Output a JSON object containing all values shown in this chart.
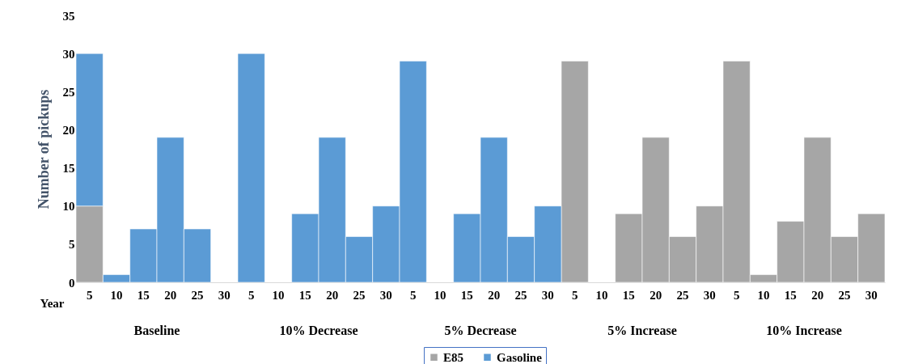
{
  "chart_data": {
    "type": "bar",
    "stacked": true,
    "ylabel": "Number of pickups",
    "xlabel": "Year",
    "categories": [
      "5",
      "10",
      "15",
      "20",
      "25",
      "30",
      "5",
      "10",
      "15",
      "20",
      "25",
      "30",
      "5",
      "10",
      "15",
      "20",
      "25",
      "30",
      "5",
      "10",
      "15",
      "20",
      "25",
      "30",
      "5",
      "10",
      "15",
      "20",
      "25",
      "30"
    ],
    "series": [
      {
        "name": "E85",
        "color": "#a6a6a6",
        "values": [
          10,
          0,
          0,
          0,
          0,
          0,
          0,
          0,
          0,
          0,
          0,
          0,
          0,
          0,
          0,
          0,
          0,
          0,
          29,
          0,
          9,
          19,
          6,
          10,
          29,
          1,
          8,
          19,
          6,
          9
        ]
      },
      {
        "name": "Gasoline",
        "color": "#5b9bd5",
        "values": [
          20,
          1,
          7,
          19,
          7,
          0,
          30,
          0,
          9,
          19,
          6,
          10,
          29,
          0,
          9,
          19,
          6,
          10,
          0,
          0,
          0,
          0,
          0,
          0,
          0,
          0,
          0,
          0,
          0,
          0
        ]
      }
    ],
    "annotations": [
      "Baseline",
      "10% Decrease",
      "5% Decrease",
      "5% Increase",
      "10% Increase"
    ],
    "ylim": [
      0,
      35
    ],
    "yticks": [
      0,
      5,
      10,
      15,
      20,
      25,
      30,
      35
    ],
    "grid": false,
    "legend": "bottom"
  }
}
